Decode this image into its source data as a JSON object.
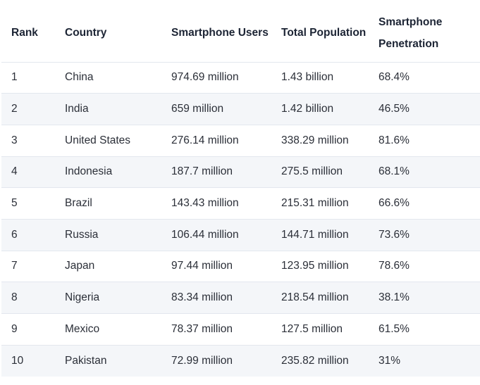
{
  "chart_data": {
    "type": "table",
    "columns": [
      "Rank",
      "Country",
      "Smartphone Users",
      "Total Population",
      "Smartphone Penetration"
    ],
    "rows": [
      [
        "1",
        "China",
        "974.69 million",
        "1.43 billion",
        "68.4%"
      ],
      [
        "2",
        "India",
        "659 million",
        "1.42 billion",
        "46.5%"
      ],
      [
        "3",
        "United States",
        "276.14 million",
        "338.29 million",
        "81.6%"
      ],
      [
        "4",
        "Indonesia",
        "187.7 million",
        "275.5 million",
        "68.1%"
      ],
      [
        "5",
        "Brazil",
        "143.43 million",
        "215.31 million",
        "66.6%"
      ],
      [
        "6",
        "Russia",
        "106.44 million",
        "144.71 million",
        "73.6%"
      ],
      [
        "7",
        "Japan",
        "97.44 million",
        "123.95 million",
        "78.6%"
      ],
      [
        "8",
        "Nigeria",
        "83.34 million",
        "218.54 million",
        "38.1%"
      ],
      [
        "9",
        "Mexico",
        "78.37 million",
        "127.5 million",
        "61.5%"
      ],
      [
        "10",
        "Pakistan",
        "72.99 million",
        "235.82 million",
        "31%"
      ]
    ]
  },
  "colors": {
    "header_text": "#1c2434",
    "body_text": "#2b2f38",
    "row_stripe": "#f4f6f9",
    "row_border": "#e3e7ee"
  }
}
